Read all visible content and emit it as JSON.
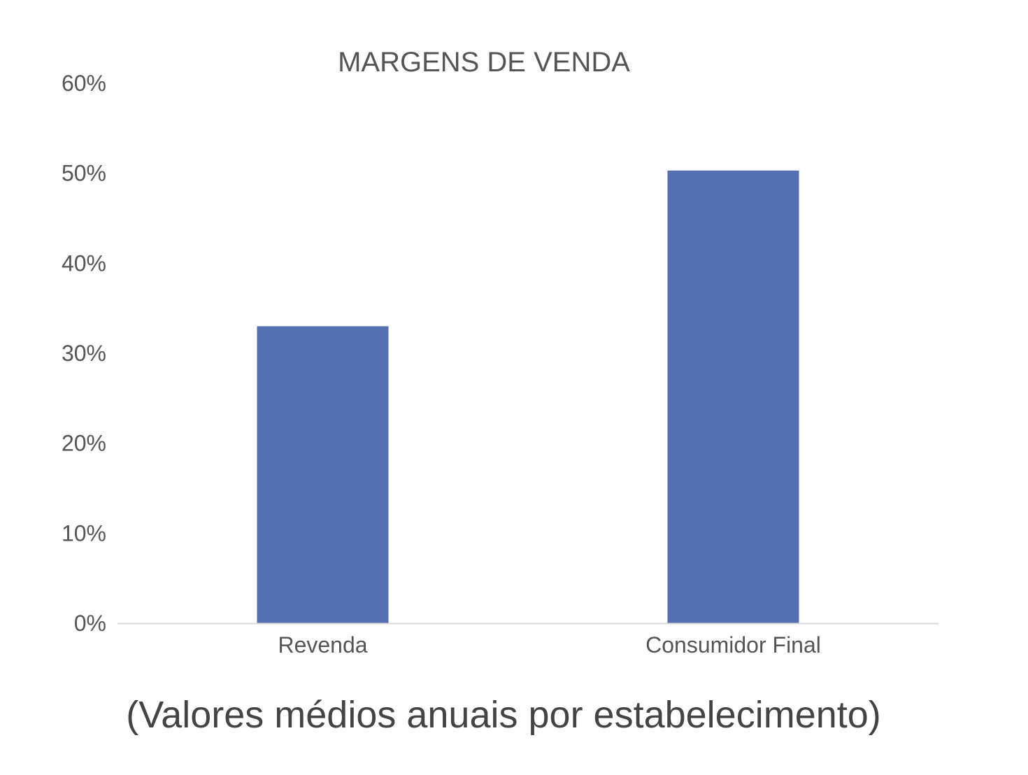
{
  "chart_data": {
    "type": "bar",
    "title": "MARGENS DE VENDA",
    "subtitle": "(Valores médios anuais por estabelecimento)",
    "categories": [
      "Revenda",
      "Consumidor Final"
    ],
    "values": [
      33,
      50.3
    ],
    "ylim": [
      0,
      60
    ],
    "yticks": [
      0,
      10,
      20,
      30,
      40,
      50,
      60
    ],
    "ytick_format": "percent",
    "xlabel": "",
    "ylabel": "",
    "grid": false,
    "legend": "none",
    "bar_color": "#5470b0",
    "axis_color": "#d9d9d9",
    "text_color": "#555555"
  }
}
